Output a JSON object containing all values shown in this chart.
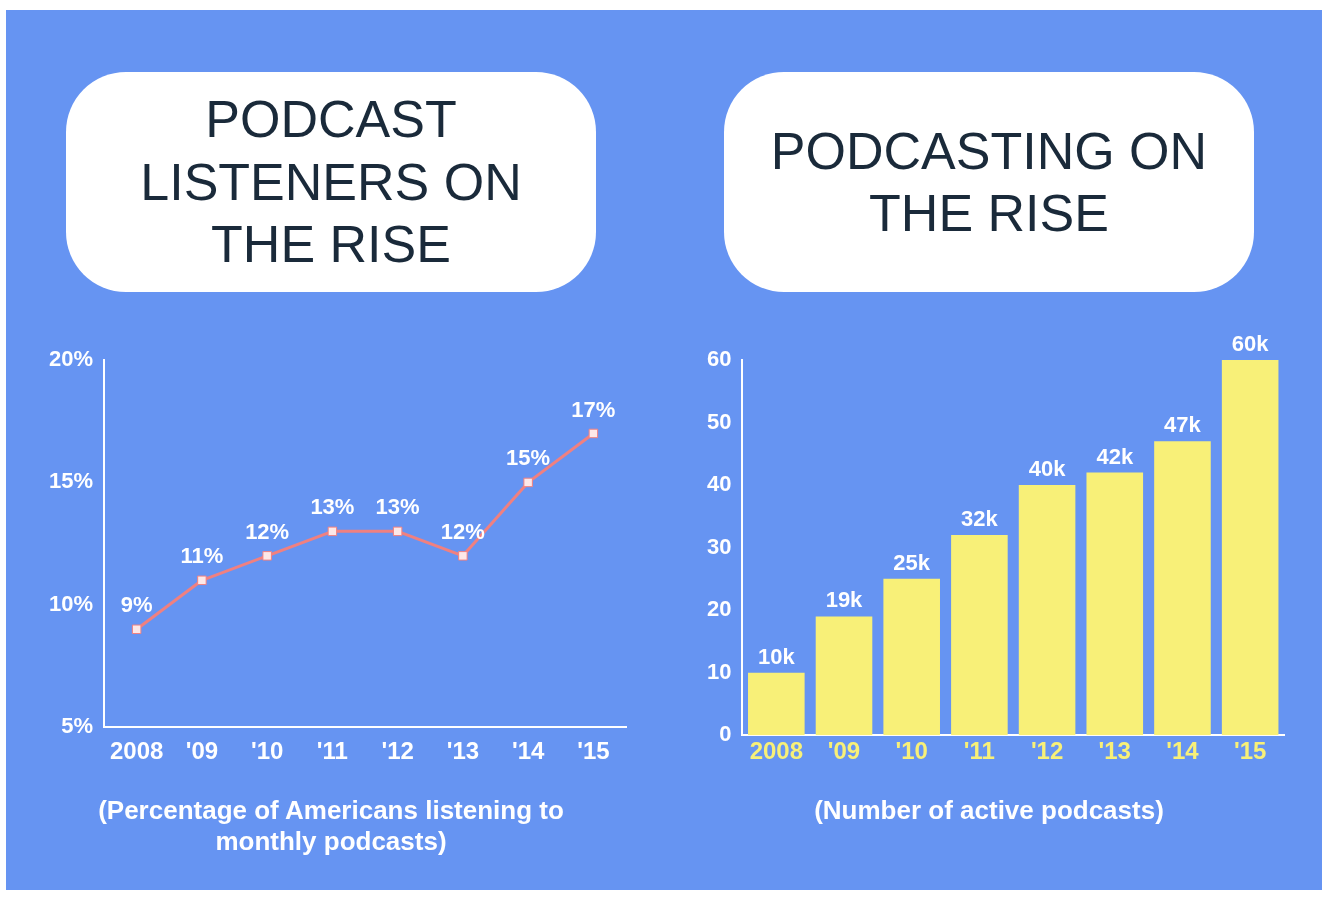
{
  "chart_data": [
    {
      "type": "line",
      "title": "PODCAST LISTENERS ON THE RISE",
      "categories": [
        "2008",
        "'09",
        "'10",
        "'11",
        "'12",
        "'13",
        "'14",
        "'15"
      ],
      "series": [
        {
          "color": "#f08080",
          "values": [
            9,
            11,
            12,
            13,
            13,
            12,
            15,
            17
          ],
          "value_labels": [
            "9%",
            "11%",
            "12%",
            "13%",
            "13%",
            "12%",
            "15%",
            "17%"
          ]
        }
      ],
      "ylim": [
        5,
        20
      ],
      "yticks": [
        {
          "value": 5,
          "label": "5%"
        },
        {
          "value": 10,
          "label": "10%"
        },
        {
          "value": 15,
          "label": "15%"
        },
        {
          "value": 20,
          "label": "20%"
        }
      ],
      "marker": "square",
      "legend": false,
      "grid": false,
      "annotations": [
        "(Percentage of Americans listening to monthly podcasts)"
      ]
    },
    {
      "type": "bar",
      "title": "PODCASTING ON THE RISE",
      "categories": [
        "2008",
        "'09",
        "'10",
        "'11",
        "'12",
        "'13",
        "'14",
        "'15"
      ],
      "series": [
        {
          "color": "#f8f078",
          "values": [
            10,
            19,
            25,
            32,
            40,
            42,
            47,
            60
          ],
          "value_labels": [
            "10k",
            "19k",
            "25k",
            "32k",
            "40k",
            "42k",
            "47k",
            "60k"
          ]
        }
      ],
      "ylim": [
        0,
        60
      ],
      "yticks": [
        0,
        10,
        20,
        30,
        40,
        50,
        60
      ],
      "legend": false,
      "grid": false,
      "annotations": [
        "(Number of active podcasts)"
      ]
    }
  ]
}
